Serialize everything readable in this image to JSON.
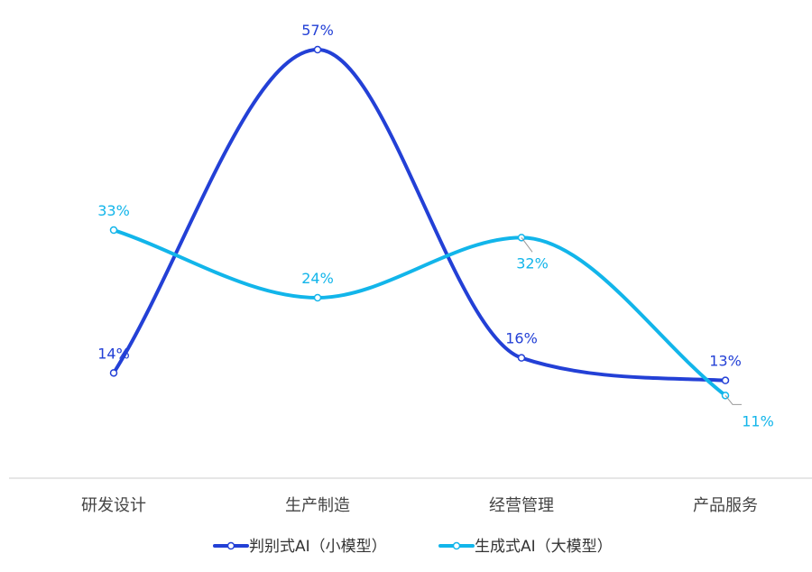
{
  "chart_data": {
    "type": "line",
    "smooth": true,
    "categories": [
      "研发设计",
      "生产制造",
      "经营管理",
      "产品服务"
    ],
    "series": [
      {
        "name": "判别式AI（小模型）",
        "values": [
          14,
          57,
          16,
          13
        ],
        "labels": [
          "14%",
          "57%",
          "16%",
          "13%"
        ],
        "color": "#2340d6"
      },
      {
        "name": "生成式AI（大模型）",
        "values": [
          33,
          24,
          32,
          11
        ],
        "labels": [
          "33%",
          "24%",
          "32%",
          "11%"
        ],
        "color": "#12b5ea"
      }
    ],
    "unit": "%",
    "ylim": [
      0,
      60
    ],
    "grid": false,
    "legend_position": "bottom-center",
    "axis_color": "#cccccc"
  }
}
